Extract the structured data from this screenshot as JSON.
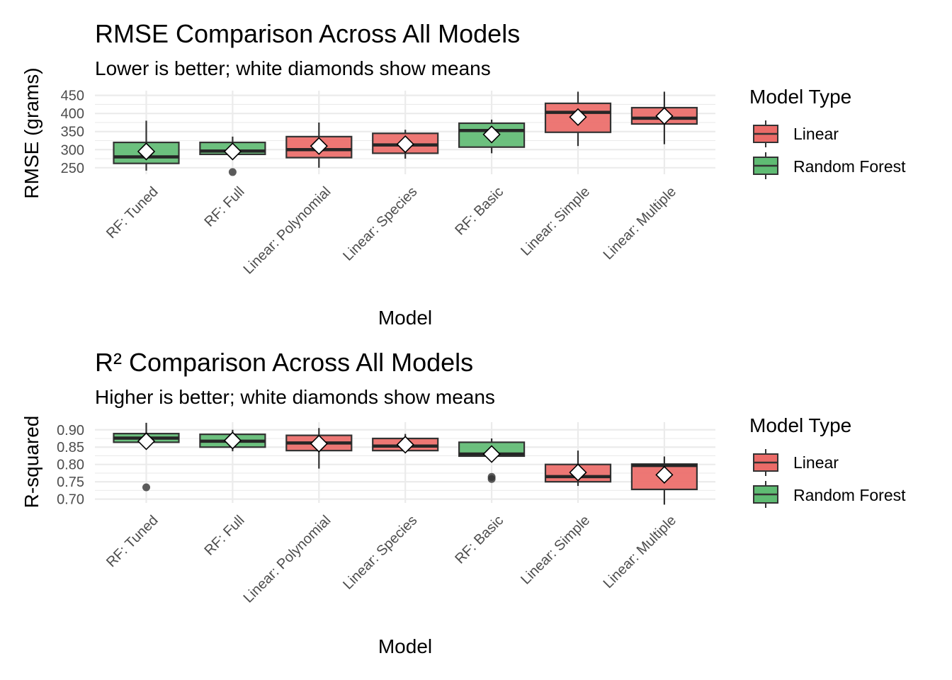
{
  "chart_data": [
    {
      "type": "boxplot",
      "title": "RMSE Comparison Across All Models",
      "subtitle": "Lower is better; white diamonds show means",
      "xlabel": "Model",
      "ylabel": "RMSE (grams)",
      "ylim": [
        232,
        463
      ],
      "yticks": [
        250,
        300,
        350,
        400,
        450
      ],
      "ytick_labels": [
        "250",
        "300",
        "350",
        "400",
        "450"
      ],
      "categories": [
        "RF: Tuned",
        "RF: Full",
        "Linear: Polynomial",
        "Linear: Species",
        "RF: Basic",
        "Linear: Simple",
        "Linear: Multiple"
      ],
      "boxes": [
        {
          "model": "RF: Tuned",
          "type": "Random Forest",
          "whisker_low": 242,
          "q1": 262,
          "median": 280,
          "q3": 320,
          "whisker_high": 380,
          "mean": 295,
          "outliers": []
        },
        {
          "model": "RF: Full",
          "type": "Random Forest",
          "whisker_low": 282,
          "q1": 287,
          "median": 296,
          "q3": 320,
          "whisker_high": 336,
          "mean": 295,
          "outliers": [
            238
          ]
        },
        {
          "model": "Linear: Polynomial",
          "type": "Linear",
          "whisker_low": 250,
          "q1": 278,
          "median": 300,
          "q3": 336,
          "whisker_high": 375,
          "mean": 310,
          "outliers": []
        },
        {
          "model": "Linear: Species",
          "type": "Linear",
          "whisker_low": 275,
          "q1": 290,
          "median": 313,
          "q3": 345,
          "whisker_high": 355,
          "mean": 315,
          "outliers": []
        },
        {
          "model": "RF: Basic",
          "type": "Random Forest",
          "whisker_low": 290,
          "q1": 307,
          "median": 353,
          "q3": 373,
          "whisker_high": 383,
          "mean": 342,
          "outliers": []
        },
        {
          "model": "Linear: Simple",
          "type": "Linear",
          "whisker_low": 310,
          "q1": 348,
          "median": 403,
          "q3": 428,
          "whisker_high": 460,
          "mean": 390,
          "outliers": []
        },
        {
          "model": "Linear: Multiple",
          "type": "Linear",
          "whisker_low": 315,
          "q1": 371,
          "median": 387,
          "q3": 416,
          "whisker_high": 460,
          "mean": 393,
          "outliers": []
        }
      ],
      "legend": {
        "title": "Model Type",
        "entries": [
          {
            "label": "Linear",
            "color": "#eb6b68"
          },
          {
            "label": "Random Forest",
            "color": "#5fbb73"
          }
        ],
        "position": "right"
      },
      "grid": true
    },
    {
      "type": "boxplot",
      "title": "R² Comparison Across All Models",
      "subtitle": "Higher is better; white diamonds show means",
      "xlabel": "Model",
      "ylabel": "R-squared",
      "ylim": [
        0.689,
        0.922
      ],
      "yticks": [
        0.7,
        0.75,
        0.8,
        0.85,
        0.9
      ],
      "ytick_labels": [
        "0.70",
        "0.75",
        "0.80",
        "0.85",
        "0.90"
      ],
      "categories": [
        "RF: Tuned",
        "RF: Full",
        "Linear: Polynomial",
        "Linear: Species",
        "RF: Basic",
        "Linear: Simple",
        "Linear: Multiple"
      ],
      "boxes": [
        {
          "model": "RF: Tuned",
          "type": "Random Forest",
          "whisker_low": 0.862,
          "q1": 0.864,
          "median": 0.876,
          "q3": 0.889,
          "whisker_high": 0.92,
          "mean": 0.867,
          "outliers": [
            0.734
          ]
        },
        {
          "model": "RF: Full",
          "type": "Random Forest",
          "whisker_low": 0.838,
          "q1": 0.85,
          "median": 0.867,
          "q3": 0.887,
          "whisker_high": 0.9,
          "mean": 0.869,
          "outliers": []
        },
        {
          "model": "Linear: Polynomial",
          "type": "Linear",
          "whisker_low": 0.788,
          "q1": 0.84,
          "median": 0.862,
          "q3": 0.884,
          "whisker_high": 0.905,
          "mean": 0.86,
          "outliers": []
        },
        {
          "model": "Linear: Species",
          "type": "Linear",
          "whisker_low": 0.835,
          "q1": 0.84,
          "median": 0.853,
          "q3": 0.875,
          "whisker_high": 0.888,
          "mean": 0.857,
          "outliers": []
        },
        {
          "model": "RF: Basic",
          "type": "Random Forest",
          "whisker_low": 0.822,
          "q1": 0.824,
          "median": 0.83,
          "q3": 0.864,
          "whisker_high": 0.875,
          "mean": 0.83,
          "outliers": [
            0.758,
            0.764
          ]
        },
        {
          "model": "Linear: Simple",
          "type": "Linear",
          "whisker_low": 0.738,
          "q1": 0.75,
          "median": 0.765,
          "q3": 0.8,
          "whisker_high": 0.84,
          "mean": 0.777,
          "outliers": []
        },
        {
          "model": "Linear: Multiple",
          "type": "Linear",
          "whisker_low": 0.684,
          "q1": 0.728,
          "median": 0.797,
          "q3": 0.801,
          "whisker_high": 0.823,
          "mean": 0.77,
          "outliers": []
        }
      ],
      "legend": {
        "title": "Model Type",
        "entries": [
          {
            "label": "Linear",
            "color": "#eb6b68"
          },
          {
            "label": "Random Forest",
            "color": "#5fbb73"
          }
        ],
        "position": "right"
      },
      "grid": true
    }
  ]
}
